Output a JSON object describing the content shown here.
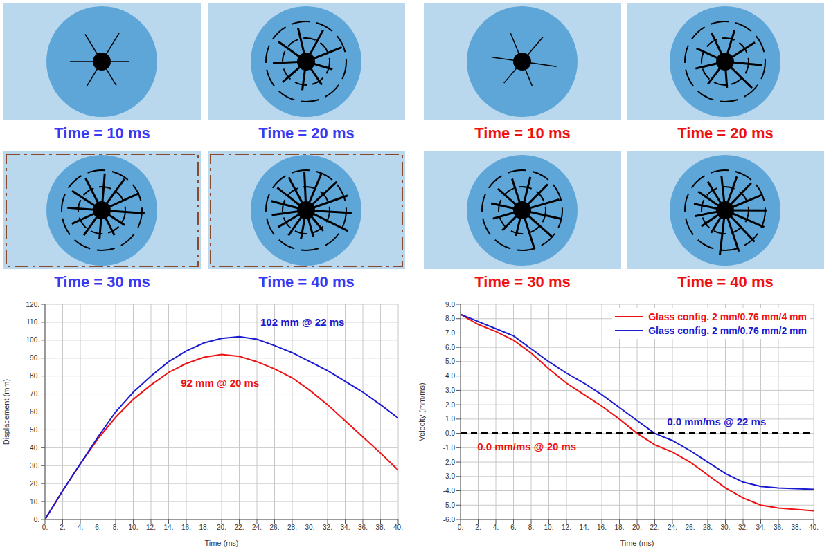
{
  "images": [
    {
      "caption": "Time = 10 ms",
      "color": "#3a3af0"
    },
    {
      "caption": "Time = 20 ms",
      "color": "#3a3af0"
    },
    {
      "caption": "Time = 30 ms",
      "color": "#3a3af0"
    },
    {
      "caption": "Time = 40 ms",
      "color": "#3a3af0"
    },
    {
      "caption": "Time = 10 ms",
      "color": "#ee1111"
    },
    {
      "caption": "Time = 20 ms",
      "color": "#ee1111"
    },
    {
      "caption": "Time = 30 ms",
      "color": "#ee1111"
    },
    {
      "caption": "Time = 40 ms",
      "color": "#ee1111"
    }
  ],
  "chart_data": [
    {
      "type": "line",
      "x_label": "Time (ms)",
      "y_label": "Displacement (mm)",
      "grid": true,
      "x": [
        0,
        2,
        4,
        6,
        8,
        10,
        12,
        14,
        16,
        18,
        20,
        22,
        24,
        26,
        28,
        30,
        32,
        34,
        36,
        38,
        40
      ],
      "xlim": [
        0,
        40
      ],
      "xticks": [
        {
          "value": 0,
          "label": "0."
        },
        {
          "value": 2,
          "label": "2."
        },
        {
          "value": 4,
          "label": "4."
        },
        {
          "value": 6,
          "label": "6."
        },
        {
          "value": 8,
          "label": "8."
        },
        {
          "value": 10,
          "label": "10."
        },
        {
          "value": 12,
          "label": "12."
        },
        {
          "value": 14,
          "label": "14."
        },
        {
          "value": 16,
          "label": "16."
        },
        {
          "value": 18,
          "label": "18."
        },
        {
          "value": 20,
          "label": "20."
        },
        {
          "value": 22,
          "label": "22."
        },
        {
          "value": 24,
          "label": "24."
        },
        {
          "value": 26,
          "label": "26."
        },
        {
          "value": 28,
          "label": "28."
        },
        {
          "value": 30,
          "label": "30."
        },
        {
          "value": 32,
          "label": "32."
        },
        {
          "value": 34,
          "label": "34."
        },
        {
          "value": 36,
          "label": "36."
        },
        {
          "value": 38,
          "label": "38."
        },
        {
          "value": 40,
          "label": "40."
        }
      ],
      "ylim": [
        0,
        120
      ],
      "yticks": [
        {
          "value": 0,
          "label": "0."
        },
        {
          "value": 10,
          "label": "10."
        },
        {
          "value": 20,
          "label": "20."
        },
        {
          "value": 30,
          "label": "30."
        },
        {
          "value": 40,
          "label": "40."
        },
        {
          "value": 50,
          "label": "50."
        },
        {
          "value": 60,
          "label": "60."
        },
        {
          "value": 70,
          "label": "70."
        },
        {
          "value": 80,
          "label": "80."
        },
        {
          "value": 90,
          "label": "90."
        },
        {
          "value": 100,
          "label": "100."
        },
        {
          "value": 110,
          "label": "110."
        },
        {
          "value": 120,
          "label": "120."
        }
      ],
      "series": [
        {
          "color": "#ee1111",
          "values": [
            0,
            16,
            31,
            45,
            57,
            67,
            75,
            82,
            87,
            90.5,
            92,
            91,
            88,
            84,
            79,
            72,
            64,
            55,
            46,
            37,
            27.5
          ]
        },
        {
          "color": "#1a1ad0",
          "values": [
            0,
            16,
            31,
            46,
            60,
            71,
            80,
            88,
            94,
            98.5,
            101,
            102,
            100.5,
            97,
            93,
            88,
            83,
            77,
            71,
            64,
            56.5
          ]
        }
      ],
      "annotations": [
        {
          "text": "102 mm @ 22 ms",
          "x": 24,
          "y": 110,
          "color": "#1a1ad0"
        },
        {
          "text": "92 mm @ 20 ms",
          "x": 15,
          "y": 76,
          "color": "#ee1111"
        }
      ]
    },
    {
      "type": "line",
      "x_label": "Time (ms)",
      "y_label": "Velocity (mm/ms)",
      "grid": true,
      "legend": "upper right",
      "x": [
        0,
        2,
        4,
        6,
        8,
        10,
        12,
        14,
        16,
        18,
        20,
        22,
        24,
        26,
        28,
        30,
        32,
        34,
        36,
        38,
        40
      ],
      "xlim": [
        0,
        40
      ],
      "xticks": [
        {
          "value": 0,
          "label": "0."
        },
        {
          "value": 2,
          "label": "2."
        },
        {
          "value": 4,
          "label": "4."
        },
        {
          "value": 6,
          "label": "6."
        },
        {
          "value": 8,
          "label": "8."
        },
        {
          "value": 10,
          "label": "10."
        },
        {
          "value": 12,
          "label": "12."
        },
        {
          "value": 14,
          "label": "14."
        },
        {
          "value": 16,
          "label": "16."
        },
        {
          "value": 18,
          "label": "18."
        },
        {
          "value": 20,
          "label": "20."
        },
        {
          "value": 22,
          "label": "22."
        },
        {
          "value": 24,
          "label": "24."
        },
        {
          "value": 26,
          "label": "26."
        },
        {
          "value": 28,
          "label": "28."
        },
        {
          "value": 30,
          "label": "30."
        },
        {
          "value": 32,
          "label": "32."
        },
        {
          "value": 34,
          "label": "34."
        },
        {
          "value": 36,
          "label": "36."
        },
        {
          "value": 38,
          "label": "38."
        },
        {
          "value": 40,
          "label": "40."
        }
      ],
      "ylim": [
        -6,
        9
      ],
      "yticks": [
        {
          "value": -6,
          "label": "-6.0"
        },
        {
          "value": -5,
          "label": "-5.0"
        },
        {
          "value": -4,
          "label": "-4.0"
        },
        {
          "value": -3,
          "label": "-3.0"
        },
        {
          "value": -2,
          "label": "-2.0"
        },
        {
          "value": -1,
          "label": "-1.0"
        },
        {
          "value": 0,
          "label": "0.0"
        },
        {
          "value": 1,
          "label": "1.0"
        },
        {
          "value": 2,
          "label": "2.0"
        },
        {
          "value": 3,
          "label": "3.0"
        },
        {
          "value": 4,
          "label": "4.0"
        },
        {
          "value": 5,
          "label": "5.0"
        },
        {
          "value": 6,
          "label": "6.0"
        },
        {
          "value": 7,
          "label": "7.0"
        },
        {
          "value": 8,
          "label": "8.0"
        },
        {
          "value": 9,
          "label": "9.0"
        }
      ],
      "series": [
        {
          "name": "Glass config. 2 mm/0.76 mm/4 mm",
          "color": "#ee1111",
          "values": [
            8.3,
            7.6,
            7.1,
            6.5,
            5.6,
            4.5,
            3.5,
            2.7,
            1.9,
            1.0,
            0.0,
            -0.8,
            -1.3,
            -2.0,
            -2.9,
            -3.8,
            -4.5,
            -5.0,
            -5.2,
            -5.3,
            -5.4
          ]
        },
        {
          "name": "Glass config. 2 mm/0.76 mm/2 mm",
          "color": "#1a1ad0",
          "values": [
            8.3,
            7.8,
            7.3,
            6.8,
            5.9,
            5.0,
            4.2,
            3.5,
            2.7,
            1.8,
            0.9,
            0.0,
            -0.5,
            -1.2,
            -2.0,
            -2.8,
            -3.4,
            -3.7,
            -3.8,
            -3.85,
            -3.9
          ]
        },
        {
          "color": "#000000",
          "line_style": "dashed",
          "values": [
            0,
            0,
            0,
            0,
            0,
            0,
            0,
            0,
            0,
            0,
            0,
            0,
            0,
            0,
            0,
            0,
            0,
            0,
            0,
            0,
            0
          ]
        }
      ],
      "annotations": [
        {
          "text": "0.0 mm/ms @ 22 ms",
          "x": 23,
          "y": 0.8,
          "color": "#1a1ad0"
        },
        {
          "text": "0.0 mm/ms @ 20 ms",
          "x": 1.5,
          "y": -0.9,
          "color": "#ee1111"
        }
      ]
    }
  ]
}
